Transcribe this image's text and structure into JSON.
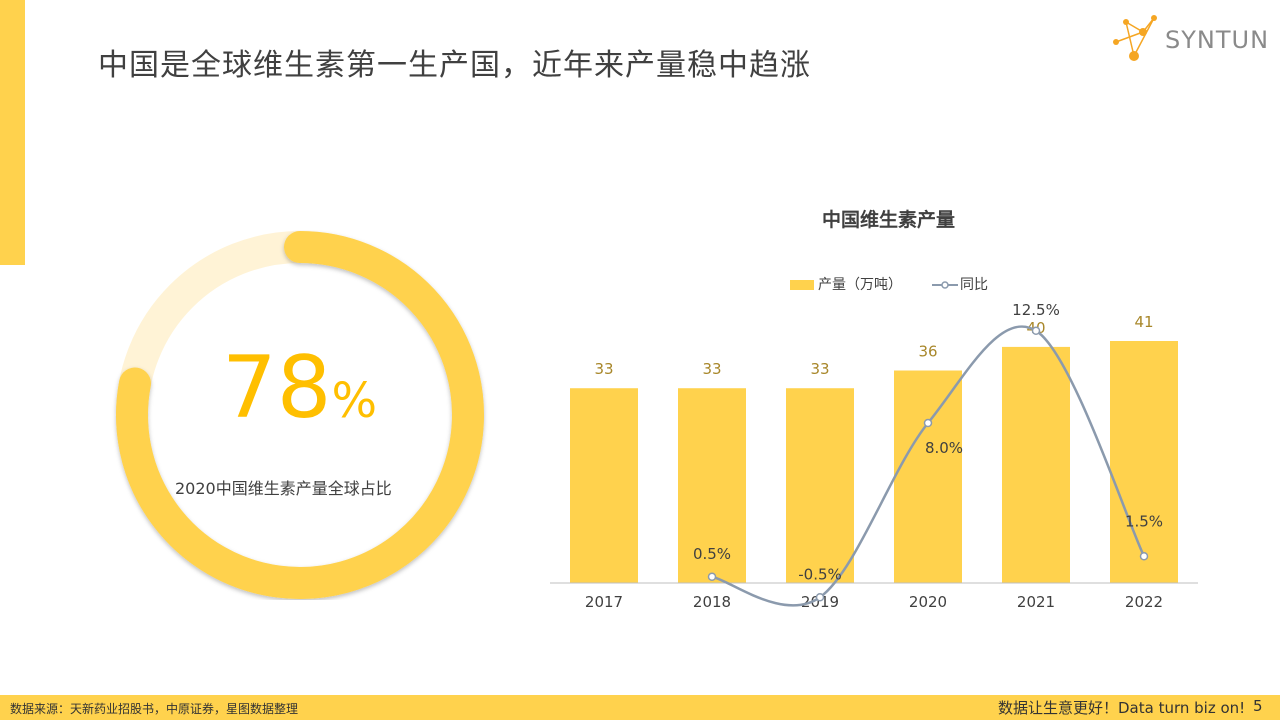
{
  "page": {
    "title": "中国是全球维生素第一生产国，近年来产量稳中趋涨",
    "page_number": "5"
  },
  "logo": {
    "text": "SYNTUN"
  },
  "donut": {
    "value_number": "78",
    "value_unit": "%",
    "value": 78,
    "caption": "2020中国维生素产量全球占比",
    "colors": {
      "fill": "#FFD24D",
      "track": "#FFF3D6"
    }
  },
  "chart_data": {
    "type": "bar",
    "title": "中国维生素产量",
    "categories": [
      "2017",
      "2018",
      "2019",
      "2020",
      "2021",
      "2022"
    ],
    "series": [
      {
        "name": "产量（万吨）",
        "type": "bar",
        "values": [
          33,
          33,
          33,
          36,
          40,
          41
        ],
        "labels": [
          "33",
          "33",
          "33",
          "36",
          "40",
          "41"
        ]
      },
      {
        "name": "同比",
        "type": "line",
        "values": [
          null,
          0.5,
          -0.5,
          8.0,
          12.5,
          1.5
        ],
        "labels": [
          "",
          "0.5%",
          "-0.5%",
          "8.0%",
          "12.5%",
          "1.5%"
        ]
      }
    ],
    "legend_position": "top-center",
    "colors": {
      "bar": "#FFD24D",
      "line": "#8B9AAD",
      "bar_label": "#A8872A"
    }
  },
  "footer": {
    "source": "数据来源：天新药业招股书，中原证券，星图数据整理",
    "slogan": "数据让生意更好！Data turn biz on!"
  }
}
